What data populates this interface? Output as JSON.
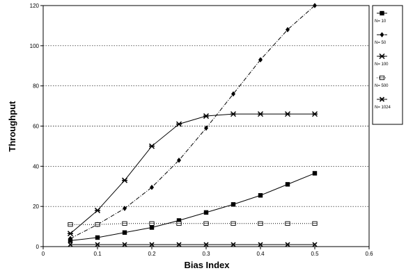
{
  "chart_data": {
    "type": "line",
    "title": "",
    "xlabel": "Bias Index",
    "ylabel": "Throughput",
    "xlim": [
      0,
      0.6
    ],
    "ylim": [
      0,
      120
    ],
    "x_ticks": [
      "0",
      "0.1",
      "0.2",
      "0.3",
      "0.4",
      "0.5",
      "0.6"
    ],
    "y_ticks": [
      "0",
      "20",
      "40",
      "60",
      "80",
      "100",
      "120"
    ],
    "grid": "horizontal dotted",
    "legend_position": "right-top",
    "series": [
      {
        "name": "N= 10",
        "marker": "filled-square",
        "line": "solid",
        "x": [
          0.05,
          0.1,
          0.15,
          0.2,
          0.25,
          0.3,
          0.35,
          0.4,
          0.45,
          0.5
        ],
        "y": [
          3,
          4.5,
          7,
          9.5,
          13,
          17,
          21,
          25.5,
          31,
          36.5
        ]
      },
      {
        "name": "N= 50",
        "marker": "diamond",
        "line": "dash-dot",
        "x": [
          0.05,
          0.1,
          0.15,
          0.2,
          0.25,
          0.3,
          0.35,
          0.4,
          0.45,
          0.5
        ],
        "y": [
          4,
          11,
          19,
          29.5,
          43,
          59,
          76,
          93,
          108,
          120
        ]
      },
      {
        "name": "N= 100",
        "marker": "star",
        "line": "solid",
        "x": [
          0.05,
          0.1,
          0.15,
          0.2,
          0.25,
          0.3,
          0.35,
          0.4,
          0.45,
          0.5
        ],
        "y": [
          6.5,
          18,
          33,
          50,
          61,
          65,
          66,
          66,
          66,
          66
        ]
      },
      {
        "name": "N= 500",
        "marker": "open-square",
        "line": "dotted",
        "x": [
          0.05,
          0.1,
          0.15,
          0.2,
          0.25,
          0.3,
          0.35,
          0.4,
          0.45,
          0.5
        ],
        "y": [
          11,
          11,
          11.5,
          11.5,
          11.5,
          11.5,
          11.5,
          11.5,
          11.5,
          11.5
        ]
      },
      {
        "name": "N= 1024",
        "marker": "x",
        "line": "solid",
        "x": [
          0.05,
          0.1,
          0.15,
          0.2,
          0.25,
          0.3,
          0.35,
          0.4,
          0.45,
          0.5
        ],
        "y": [
          1,
          1,
          1,
          1,
          1,
          1,
          1,
          1,
          1,
          1
        ]
      }
    ]
  }
}
